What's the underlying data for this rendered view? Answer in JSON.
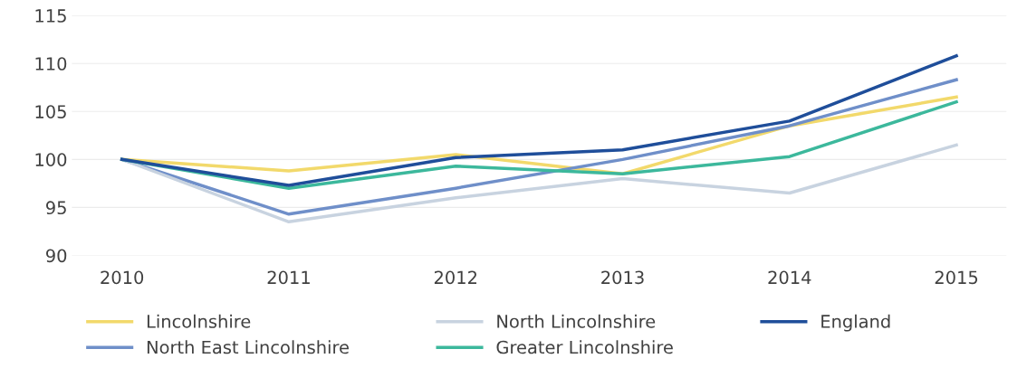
{
  "chart_data": {
    "type": "line",
    "categories": [
      "2010",
      "2011",
      "2012",
      "2013",
      "2014",
      "2015"
    ],
    "series": [
      {
        "name": "Lincolnshire",
        "color": "#f2d96b",
        "values": [
          100,
          98.8,
          100.5,
          98.5,
          103.5,
          106.5
        ]
      },
      {
        "name": "North East Lincolnshire",
        "color": "#6f8fc9",
        "values": [
          100,
          94.3,
          97,
          100,
          103.5,
          108.3
        ]
      },
      {
        "name": "North Lincolnshire",
        "color": "#c8d3e0",
        "values": [
          100,
          93.5,
          96,
          98,
          96.5,
          101.5
        ]
      },
      {
        "name": "Greater Lincolnshire",
        "color": "#3cb89c",
        "values": [
          100,
          97,
          99.3,
          98.5,
          100.3,
          106
        ]
      },
      {
        "name": "England",
        "color": "#1f4e9a",
        "values": [
          100,
          97.3,
          100.2,
          101,
          104,
          110.8
        ]
      }
    ],
    "ylim": [
      90,
      115
    ],
    "yticks": [
      90,
      95,
      100,
      105,
      110,
      115
    ],
    "grid": "y",
    "legend": "bottom",
    "marker": "none",
    "line_style": "solid"
  }
}
